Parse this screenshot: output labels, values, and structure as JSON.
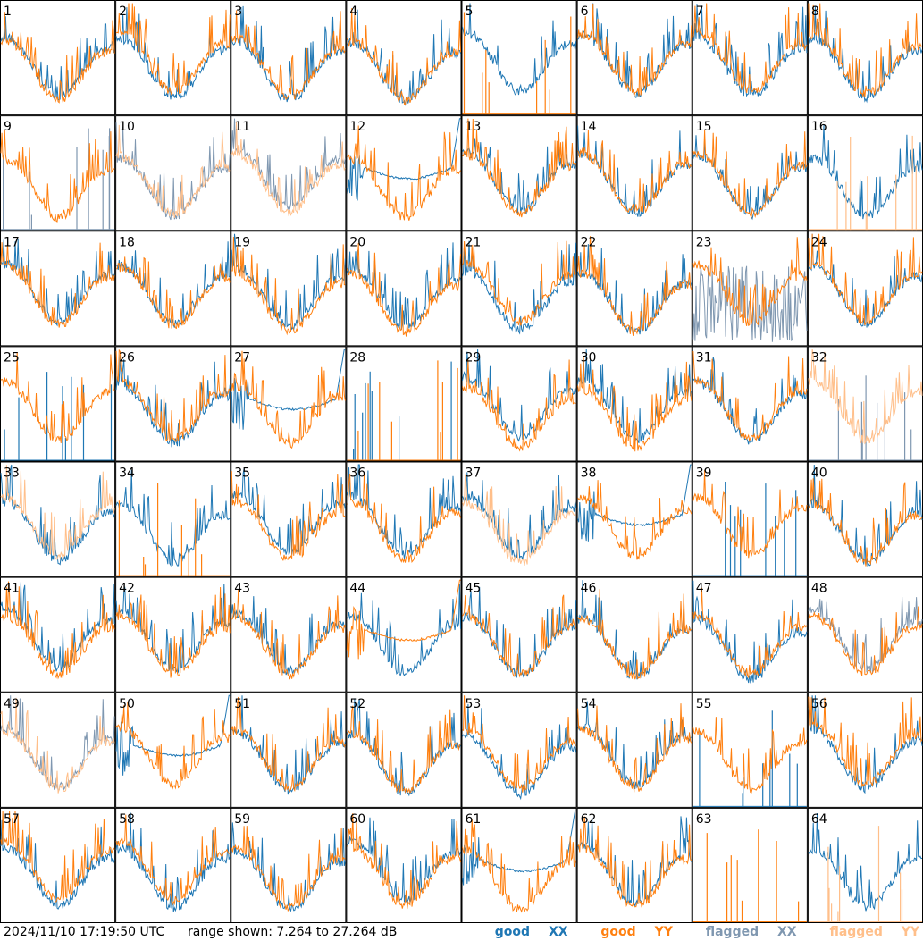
{
  "chart_data": {
    "type": "line",
    "layout": "small-multiples-grid",
    "grid": {
      "rows": 8,
      "cols": 8
    },
    "y_range_db": [
      7.264,
      27.264
    ],
    "panels": [
      {
        "id": "1",
        "xx": "good",
        "yy": "good",
        "xx_shape": "wave",
        "yy_shape": "wave"
      },
      {
        "id": "2",
        "xx": "good",
        "yy": "good",
        "xx_shape": "wave",
        "yy_shape": "wave"
      },
      {
        "id": "3",
        "xx": "good",
        "yy": "good",
        "xx_shape": "wave",
        "yy_shape": "wave"
      },
      {
        "id": "4",
        "xx": "good",
        "yy": "good",
        "xx_shape": "wave",
        "yy_shape": "wave"
      },
      {
        "id": "5",
        "xx": "good",
        "yy": "good",
        "xx_shape": "wave",
        "yy_shape": "spikes"
      },
      {
        "id": "6",
        "xx": "good",
        "yy": "good",
        "xx_shape": "wave",
        "yy_shape": "wave"
      },
      {
        "id": "7",
        "xx": "good",
        "yy": "good",
        "xx_shape": "wave",
        "yy_shape": "wave"
      },
      {
        "id": "8",
        "xx": "good",
        "yy": "good",
        "xx_shape": "wave",
        "yy_shape": "wave"
      },
      {
        "id": "9",
        "xx": "flagged",
        "yy": "good",
        "xx_shape": "spikes",
        "yy_shape": "wave"
      },
      {
        "id": "10",
        "xx": "flagged",
        "yy": "flagged",
        "xx_shape": "wave",
        "yy_shape": "wave"
      },
      {
        "id": "11",
        "xx": "flagged",
        "yy": "flagged",
        "xx_shape": "wave",
        "yy_shape": "wave"
      },
      {
        "id": "12",
        "xx": "good",
        "yy": "good",
        "xx_shape": "plateau",
        "yy_shape": "wave"
      },
      {
        "id": "13",
        "xx": "good",
        "yy": "good",
        "xx_shape": "wave",
        "yy_shape": "wave"
      },
      {
        "id": "14",
        "xx": "good",
        "yy": "good",
        "xx_shape": "wave",
        "yy_shape": "wave"
      },
      {
        "id": "15",
        "xx": "good",
        "yy": "good",
        "xx_shape": "wave",
        "yy_shape": "wave"
      },
      {
        "id": "16",
        "xx": "good",
        "yy": "flagged",
        "xx_shape": "wave",
        "yy_shape": "spikes"
      },
      {
        "id": "17",
        "xx": "good",
        "yy": "good",
        "xx_shape": "wave",
        "yy_shape": "wave"
      },
      {
        "id": "18",
        "xx": "good",
        "yy": "good",
        "xx_shape": "wave",
        "yy_shape": "wave"
      },
      {
        "id": "19",
        "xx": "good",
        "yy": "good",
        "xx_shape": "wave",
        "yy_shape": "wave"
      },
      {
        "id": "20",
        "xx": "good",
        "yy": "good",
        "xx_shape": "wave",
        "yy_shape": "wave"
      },
      {
        "id": "21",
        "xx": "good",
        "yy": "good",
        "xx_shape": "wave",
        "yy_shape": "wave"
      },
      {
        "id": "22",
        "xx": "good",
        "yy": "good",
        "xx_shape": "wave",
        "yy_shape": "wave"
      },
      {
        "id": "23",
        "xx": "flagged",
        "yy": "good",
        "xx_shape": "noisy",
        "yy_shape": "wave"
      },
      {
        "id": "24",
        "xx": "good",
        "yy": "good",
        "xx_shape": "wave",
        "yy_shape": "wave"
      },
      {
        "id": "25",
        "xx": "good",
        "yy": "good",
        "xx_shape": "spikes",
        "yy_shape": "wave"
      },
      {
        "id": "26",
        "xx": "good",
        "yy": "good",
        "xx_shape": "wave",
        "yy_shape": "wave"
      },
      {
        "id": "27",
        "xx": "good",
        "yy": "good",
        "xx_shape": "plateau",
        "yy_shape": "wave"
      },
      {
        "id": "28",
        "xx": "good",
        "yy": "good",
        "xx_shape": "spikes",
        "yy_shape": "spikes"
      },
      {
        "id": "29",
        "xx": "good",
        "yy": "good",
        "xx_shape": "wave",
        "yy_shape": "wave"
      },
      {
        "id": "30",
        "xx": "good",
        "yy": "good",
        "xx_shape": "wave",
        "yy_shape": "wave"
      },
      {
        "id": "31",
        "xx": "good",
        "yy": "good",
        "xx_shape": "wave",
        "yy_shape": "wave"
      },
      {
        "id": "32",
        "xx": "flagged",
        "yy": "flagged",
        "xx_shape": "spikes",
        "yy_shape": "wave"
      },
      {
        "id": "33",
        "xx": "good",
        "yy": "flagged",
        "xx_shape": "wave",
        "yy_shape": "wave"
      },
      {
        "id": "34",
        "xx": "good",
        "yy": "good",
        "xx_shape": "wave",
        "yy_shape": "spikes"
      },
      {
        "id": "35",
        "xx": "good",
        "yy": "good",
        "xx_shape": "wave",
        "yy_shape": "wave"
      },
      {
        "id": "36",
        "xx": "good",
        "yy": "good",
        "xx_shape": "wave",
        "yy_shape": "wave"
      },
      {
        "id": "37",
        "xx": "good",
        "yy": "flagged",
        "xx_shape": "wave",
        "yy_shape": "wave"
      },
      {
        "id": "38",
        "xx": "good",
        "yy": "good",
        "xx_shape": "plateau",
        "yy_shape": "wave"
      },
      {
        "id": "39",
        "xx": "good",
        "yy": "good",
        "xx_shape": "spikes",
        "yy_shape": "wave"
      },
      {
        "id": "40",
        "xx": "good",
        "yy": "good",
        "xx_shape": "wave",
        "yy_shape": "wave"
      },
      {
        "id": "41",
        "xx": "good",
        "yy": "good",
        "xx_shape": "wave",
        "yy_shape": "wave"
      },
      {
        "id": "42",
        "xx": "good",
        "yy": "good",
        "xx_shape": "wave",
        "yy_shape": "wave"
      },
      {
        "id": "43",
        "xx": "good",
        "yy": "good",
        "xx_shape": "wave",
        "yy_shape": "wave"
      },
      {
        "id": "44",
        "xx": "good",
        "yy": "good",
        "xx_shape": "wave",
        "yy_shape": "plateau"
      },
      {
        "id": "45",
        "xx": "good",
        "yy": "good",
        "xx_shape": "wave",
        "yy_shape": "wave"
      },
      {
        "id": "46",
        "xx": "good",
        "yy": "good",
        "xx_shape": "wave",
        "yy_shape": "wave"
      },
      {
        "id": "47",
        "xx": "good",
        "yy": "good",
        "xx_shape": "wave",
        "yy_shape": "wave"
      },
      {
        "id": "48",
        "xx": "flagged",
        "yy": "good",
        "xx_shape": "wave",
        "yy_shape": "wave"
      },
      {
        "id": "49",
        "xx": "flagged",
        "yy": "flagged",
        "xx_shape": "wave",
        "yy_shape": "wave"
      },
      {
        "id": "50",
        "xx": "good",
        "yy": "good",
        "xx_shape": "plateau",
        "yy_shape": "wave"
      },
      {
        "id": "51",
        "xx": "good",
        "yy": "good",
        "xx_shape": "wave",
        "yy_shape": "wave"
      },
      {
        "id": "52",
        "xx": "good",
        "yy": "good",
        "xx_shape": "wave",
        "yy_shape": "wave"
      },
      {
        "id": "53",
        "xx": "good",
        "yy": "good",
        "xx_shape": "wave",
        "yy_shape": "wave"
      },
      {
        "id": "54",
        "xx": "good",
        "yy": "good",
        "xx_shape": "wave",
        "yy_shape": "wave"
      },
      {
        "id": "55",
        "xx": "good",
        "yy": "good",
        "xx_shape": "spikes",
        "yy_shape": "wave"
      },
      {
        "id": "56",
        "xx": "good",
        "yy": "good",
        "xx_shape": "wave",
        "yy_shape": "wave"
      },
      {
        "id": "57",
        "xx": "good",
        "yy": "good",
        "xx_shape": "wave",
        "yy_shape": "wave"
      },
      {
        "id": "58",
        "xx": "good",
        "yy": "good",
        "xx_shape": "wave",
        "yy_shape": "wave"
      },
      {
        "id": "59",
        "xx": "good",
        "yy": "good",
        "xx_shape": "wave",
        "yy_shape": "wave"
      },
      {
        "id": "60",
        "xx": "good",
        "yy": "good",
        "xx_shape": "wave",
        "yy_shape": "wave"
      },
      {
        "id": "61",
        "xx": "good",
        "yy": "good",
        "xx_shape": "plateau",
        "yy_shape": "wave"
      },
      {
        "id": "62",
        "xx": "good",
        "yy": "good",
        "xx_shape": "wave",
        "yy_shape": "wave"
      },
      {
        "id": "63",
        "xx": "good",
        "yy": "good",
        "xx_shape": "none",
        "yy_shape": "spikes"
      },
      {
        "id": "64",
        "xx": "good",
        "yy": "flagged",
        "xx_shape": "wave",
        "yy_shape": "spikes"
      }
    ],
    "grid_lines": false
  },
  "footer": {
    "timestamp": "2024/11/10 17:19:50 UTC",
    "range_text": "range shown: 7.264 to 27.264 dB"
  },
  "legend": {
    "placement": "bottom-right",
    "good_xx": {
      "word": "good",
      "pol": "XX"
    },
    "good_yy": {
      "word": "good",
      "pol": "YY"
    },
    "flagged_xx": {
      "word": "flagged",
      "pol": "XX"
    },
    "flagged_yy": {
      "word": "flagged",
      "pol": "YY"
    }
  },
  "colors": {
    "good_xx": "#1f77b4",
    "good_yy": "#ff7f0e",
    "flagged_xx": "#7f97b0",
    "flagged_yy": "#ffbf8a",
    "panel_border": "#000000",
    "background": "#ffffff"
  }
}
